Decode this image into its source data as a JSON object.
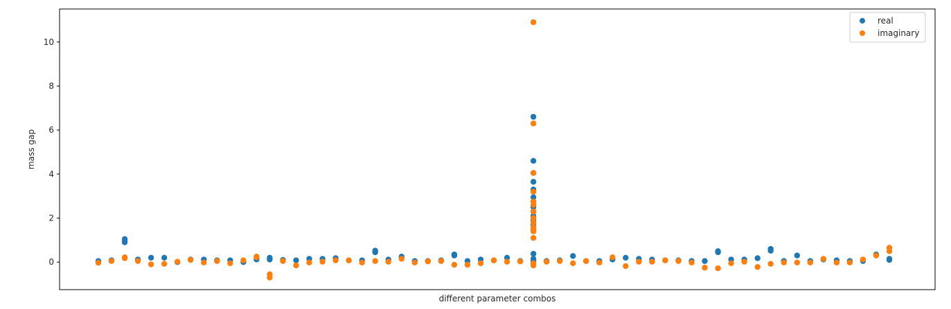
{
  "chart_data": {
    "type": "scatter",
    "title": "",
    "xlabel": "different parameter combos",
    "ylabel": "mass gap",
    "ylim": [
      -1.25,
      11.5
    ],
    "xlim": [
      -3,
      59
    ],
    "yticks": [
      0,
      2,
      4,
      6,
      8,
      10
    ],
    "grid": false,
    "legend_position": "top-right",
    "series": [
      {
        "name": "real",
        "color": "#1f77b4",
        "points": [
          [
            0,
            0.05
          ],
          [
            1,
            0.08
          ],
          [
            2,
            0.9
          ],
          [
            2,
            1.0
          ],
          [
            2,
            1.05
          ],
          [
            3,
            0.12
          ],
          [
            4,
            0.2
          ],
          [
            5,
            0.2
          ],
          [
            6,
            0.0
          ],
          [
            7,
            0.12
          ],
          [
            8,
            0.12
          ],
          [
            9,
            0.08
          ],
          [
            10,
            0.08
          ],
          [
            11,
            0.0
          ],
          [
            12,
            0.12
          ],
          [
            13,
            0.12
          ],
          [
            13,
            0.2
          ],
          [
            14,
            0.1
          ],
          [
            15,
            0.08
          ],
          [
            16,
            0.15
          ],
          [
            17,
            0.15
          ],
          [
            18,
            0.18
          ],
          [
            19,
            0.08
          ],
          [
            20,
            0.08
          ],
          [
            21,
            0.45
          ],
          [
            21,
            0.52
          ],
          [
            22,
            0.12
          ],
          [
            23,
            0.25
          ],
          [
            24,
            0.05
          ],
          [
            25,
            0.05
          ],
          [
            26,
            0.08
          ],
          [
            27,
            0.3
          ],
          [
            27,
            0.35
          ],
          [
            28,
            0.05
          ],
          [
            29,
            0.12
          ],
          [
            30,
            0.08
          ],
          [
            31,
            0.2
          ],
          [
            32,
            0.05
          ],
          [
            33,
            6.6
          ],
          [
            33,
            4.6
          ],
          [
            33,
            4.05
          ],
          [
            33,
            3.65
          ],
          [
            33,
            3.3
          ],
          [
            33,
            3.2
          ],
          [
            33,
            2.95
          ],
          [
            33,
            2.75
          ],
          [
            33,
            2.5
          ],
          [
            33,
            2.3
          ],
          [
            33,
            2.1
          ],
          [
            33,
            1.9
          ],
          [
            33,
            1.7
          ],
          [
            33,
            1.45
          ],
          [
            33,
            0.38
          ],
          [
            33,
            0.15
          ],
          [
            33,
            0.05
          ],
          [
            34,
            0.05
          ],
          [
            35,
            0.08
          ],
          [
            36,
            0.28
          ],
          [
            37,
            0.05
          ],
          [
            38,
            0.05
          ],
          [
            39,
            0.12
          ],
          [
            40,
            0.2
          ],
          [
            41,
            0.15
          ],
          [
            42,
            0.12
          ],
          [
            43,
            0.08
          ],
          [
            44,
            0.08
          ],
          [
            45,
            0.05
          ],
          [
            46,
            0.05
          ],
          [
            47,
            0.5
          ],
          [
            47,
            0.45
          ],
          [
            48,
            0.12
          ],
          [
            49,
            0.12
          ],
          [
            50,
            0.18
          ],
          [
            51,
            0.6
          ],
          [
            51,
            0.52
          ],
          [
            52,
            0.05
          ],
          [
            53,
            0.3
          ],
          [
            54,
            0.05
          ],
          [
            55,
            0.12
          ],
          [
            56,
            0.08
          ],
          [
            57,
            0.05
          ],
          [
            58,
            0.05
          ],
          [
            59,
            0.35
          ],
          [
            60,
            0.1
          ],
          [
            60,
            0.15
          ]
        ]
      },
      {
        "name": "imaginary",
        "color": "#ff7f0e",
        "points": [
          [
            0,
            -0.03
          ],
          [
            1,
            0.05
          ],
          [
            2,
            0.22
          ],
          [
            2,
            0.18
          ],
          [
            3,
            0.05
          ],
          [
            4,
            -0.1
          ],
          [
            5,
            -0.08
          ],
          [
            6,
            0.02
          ],
          [
            7,
            0.1
          ],
          [
            8,
            -0.02
          ],
          [
            9,
            0.05
          ],
          [
            10,
            -0.05
          ],
          [
            11,
            0.08
          ],
          [
            12,
            0.22
          ],
          [
            12,
            0.25
          ],
          [
            13,
            -0.55
          ],
          [
            13,
            -0.7
          ],
          [
            14,
            0.05
          ],
          [
            15,
            -0.15
          ],
          [
            16,
            -0.02
          ],
          [
            17,
            0.02
          ],
          [
            18,
            0.08
          ],
          [
            19,
            0.08
          ],
          [
            20,
            -0.02
          ],
          [
            21,
            0.05
          ],
          [
            22,
            0.02
          ],
          [
            23,
            0.15
          ],
          [
            24,
            -0.02
          ],
          [
            25,
            0.03
          ],
          [
            26,
            0.05
          ],
          [
            27,
            -0.12
          ],
          [
            28,
            -0.12
          ],
          [
            29,
            -0.05
          ],
          [
            30,
            0.08
          ],
          [
            31,
            0.02
          ],
          [
            32,
            0.03
          ],
          [
            33,
            10.9
          ],
          [
            33,
            6.3
          ],
          [
            33,
            4.05
          ],
          [
            33,
            3.2
          ],
          [
            33,
            2.75
          ],
          [
            33,
            2.6
          ],
          [
            33,
            2.3
          ],
          [
            33,
            2.0
          ],
          [
            33,
            1.8
          ],
          [
            33,
            1.6
          ],
          [
            33,
            1.5
          ],
          [
            33,
            1.4
          ],
          [
            33,
            1.1
          ],
          [
            33,
            -0.05
          ],
          [
            33,
            -0.15
          ],
          [
            34,
            0.02
          ],
          [
            35,
            0.05
          ],
          [
            36,
            -0.05
          ],
          [
            37,
            0.05
          ],
          [
            38,
            -0.02
          ],
          [
            39,
            0.22
          ],
          [
            40,
            -0.18
          ],
          [
            41,
            0.02
          ],
          [
            42,
            0.02
          ],
          [
            43,
            0.08
          ],
          [
            44,
            0.05
          ],
          [
            45,
            -0.02
          ],
          [
            46,
            -0.25
          ],
          [
            47,
            -0.28
          ],
          [
            48,
            -0.05
          ],
          [
            49,
            0.02
          ],
          [
            50,
            -0.22
          ],
          [
            51,
            -0.08
          ],
          [
            52,
            -0.02
          ],
          [
            53,
            -0.02
          ],
          [
            54,
            -0.02
          ],
          [
            55,
            0.15
          ],
          [
            56,
            -0.02
          ],
          [
            57,
            -0.02
          ],
          [
            58,
            0.12
          ],
          [
            59,
            0.3
          ],
          [
            60,
            0.65
          ],
          [
            60,
            0.5
          ]
        ]
      }
    ]
  }
}
